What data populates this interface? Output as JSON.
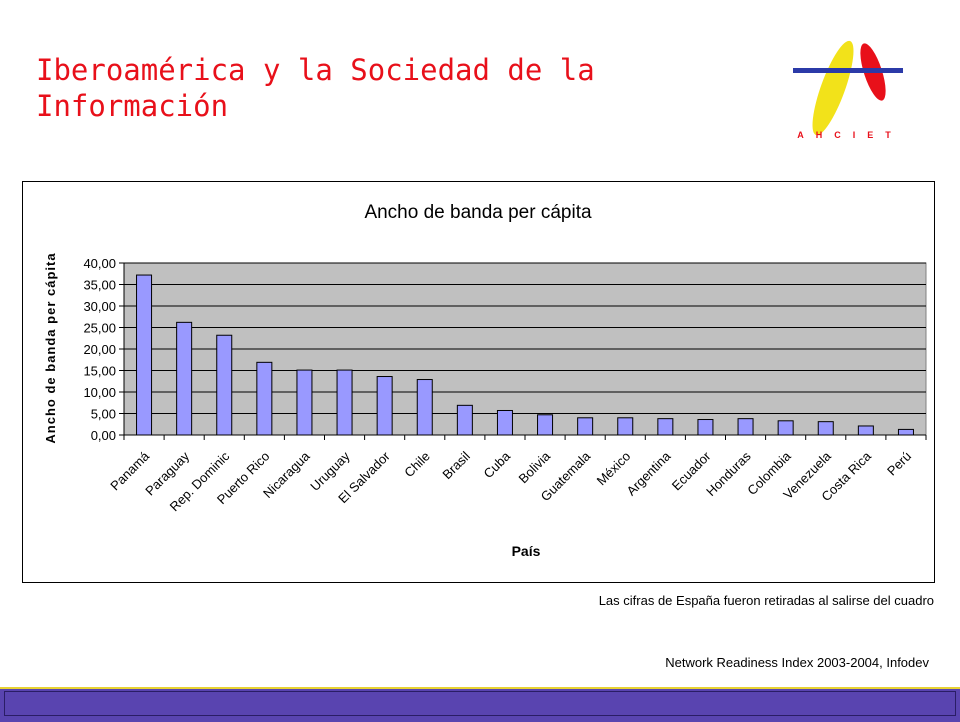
{
  "slide": {
    "title": "Iberoamérica y la Sociedad de la Información",
    "logo_text": "AHCIET",
    "note": "Las cifras de España fueron retiradas al salirse del cuadro",
    "source": "Network Readiness Index 2003-2004, Infodev"
  },
  "colors": {
    "title": "#e8101a",
    "bar_fill": "#9999ff",
    "plot_bg": "#c0c0c0",
    "footer": "#5944b0",
    "logo_yellow": "#f2e21a",
    "logo_red": "#e8101a",
    "logo_blue": "#2b3aa8"
  },
  "chart_data": {
    "type": "bar",
    "title": "Ancho de banda per cápita",
    "xlabel": "País",
    "ylabel": "Ancho de banda per cápita",
    "ylim": [
      0,
      40
    ],
    "yticks": [
      "0,00",
      "5,00",
      "10,00",
      "15,00",
      "20,00",
      "25,00",
      "30,00",
      "35,00",
      "40,00"
    ],
    "grid": true,
    "legend": "none",
    "categories": [
      "Panamá",
      "Paraguay",
      "Rep. Dominic",
      "Puerto Rico",
      "Nicaragua",
      "Uruguay",
      "El Salvador",
      "Chile",
      "Brasil",
      "Cuba",
      "Bolivia",
      "Guatemala",
      "México",
      "Argentina",
      "Ecuador",
      "Honduras",
      "Colombia",
      "Venezuela",
      "Costa Rica",
      "Perú"
    ],
    "values": [
      37.2,
      26.2,
      23.2,
      16.9,
      15.1,
      15.1,
      13.6,
      12.9,
      6.9,
      5.7,
      4.7,
      4.0,
      4.0,
      3.8,
      3.6,
      3.8,
      3.3,
      3.1,
      2.1,
      1.3
    ]
  }
}
